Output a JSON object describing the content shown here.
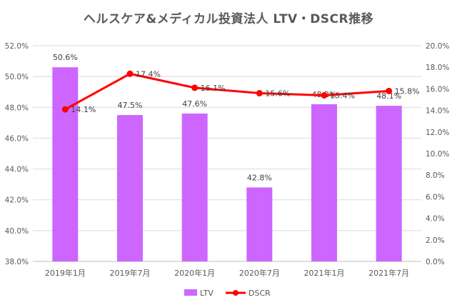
{
  "chart_data": {
    "type": "bar",
    "title": "ヘルスケア&メディカル投資法人 LTV・DSCR推移",
    "categories": [
      "2019年1月",
      "2019年7月",
      "2020年1月",
      "2020年7月",
      "2021年1月",
      "2021年7月"
    ],
    "series": [
      {
        "name": "LTV",
        "type": "bar",
        "axis": "left",
        "values": [
          50.6,
          47.5,
          47.6,
          42.8,
          48.2,
          48.1
        ],
        "labels": [
          "50.6%",
          "47.5%",
          "47.6%",
          "42.8%",
          "48.2%",
          "48.1%"
        ],
        "color": "#cc66ff"
      },
      {
        "name": "DSCR",
        "type": "line",
        "axis": "right",
        "values": [
          14.1,
          17.4,
          16.1,
          15.6,
          15.4,
          15.8
        ],
        "labels": [
          "14.1%",
          "17.4%",
          "16.1%",
          "15.6%",
          "15.4%",
          "15.8%"
        ],
        "color": "#ff0000"
      }
    ],
    "y_left": {
      "min": 38.0,
      "max": 52.0,
      "step": 2.0,
      "ticks": [
        "38.0%",
        "40.0%",
        "42.0%",
        "44.0%",
        "46.0%",
        "48.0%",
        "50.0%",
        "52.0%"
      ]
    },
    "y_right": {
      "min": 0.0,
      "max": 20.0,
      "step": 2.0,
      "ticks": [
        "0.0%",
        "2.0%",
        "4.0%",
        "6.0%",
        "8.0%",
        "10.0%",
        "12.0%",
        "14.0%",
        "16.0%",
        "18.0%",
        "20.0%"
      ]
    },
    "grid": true,
    "legend_position": "bottom",
    "colors": {
      "grid": "#d9d9d9",
      "axis_text": "#595959",
      "title": "#595959"
    }
  }
}
